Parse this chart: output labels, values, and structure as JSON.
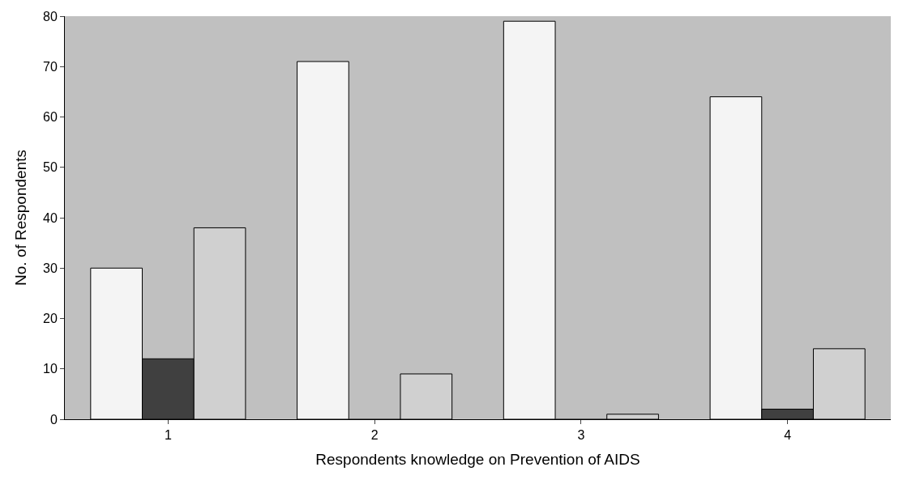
{
  "chart_data": {
    "type": "bar",
    "xlabel": "Respondents knowledge on Prevention of AIDS",
    "ylabel": "No. of Respondents",
    "categories": [
      "1",
      "2",
      "3",
      "4"
    ],
    "series": [
      {
        "color": "#f4f4f4",
        "values": [
          30,
          71,
          79,
          64
        ]
      },
      {
        "color": "#404040",
        "values": [
          12,
          0,
          0,
          2
        ]
      },
      {
        "color": "#d0d0d0",
        "values": [
          38,
          9,
          1,
          14
        ]
      }
    ],
    "ylim": [
      0,
      80
    ],
    "yticks": [
      0,
      10,
      20,
      30,
      40,
      50,
      60,
      70,
      80
    ],
    "grid": false
  }
}
